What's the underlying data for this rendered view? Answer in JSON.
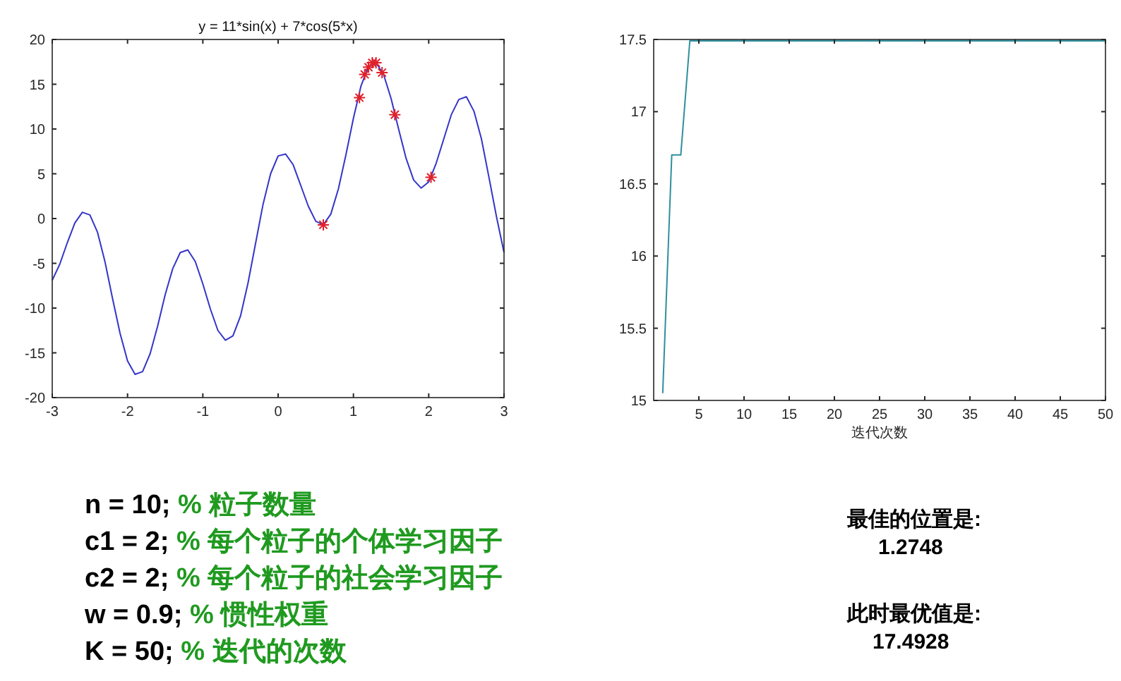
{
  "chart_data": [
    {
      "type": "line",
      "title": "y = 11*sin(x) + 7*cos(5*x)",
      "xlim": [
        -3,
        3
      ],
      "ylim": [
        -20,
        20
      ],
      "xticks": [
        -3,
        -2,
        -1,
        0,
        1,
        2,
        3
      ],
      "yticks": [
        -20,
        -15,
        -10,
        -5,
        0,
        5,
        10,
        15,
        20
      ],
      "series": [
        {
          "type": "line",
          "color": "#3535c8",
          "marker": "none",
          "x": [
            -3,
            -2.9,
            -2.8,
            -2.7,
            -2.6,
            -2.5,
            -2.4,
            -2.3,
            -2.2,
            -2.1,
            -2,
            -1.9,
            -1.8,
            -1.7,
            -1.6,
            -1.5,
            -1.4,
            -1.3,
            -1.2,
            -1.1,
            -1,
            -0.9,
            -0.8,
            -0.7,
            -0.6,
            -0.5,
            -0.4,
            -0.3,
            -0.2,
            -0.1,
            0,
            0.1,
            0.2,
            0.3,
            0.4,
            0.5,
            0.6,
            0.7,
            0.8,
            0.9,
            1,
            1.1,
            1.2,
            1.3,
            1.4,
            1.5,
            1.6,
            1.7,
            1.8,
            1.9,
            2,
            2.1,
            2.2,
            2.3,
            2.4,
            2.5,
            2.6,
            2.7,
            2.8,
            2.9,
            3
          ],
          "values": [
            -6.9,
            -5.1,
            -2.7,
            -0.5,
            0.7,
            0.4,
            -1.5,
            -4.8,
            -8.9,
            -12.8,
            -15.9,
            -17.4,
            -17.1,
            -15.1,
            -12.0,
            -8.5,
            -5.6,
            -3.8,
            -3.5,
            -4.8,
            -7.3,
            -10.1,
            -12.5,
            -13.6,
            -13.1,
            -10.9,
            -7.2,
            -2.8,
            1.6,
            5.0,
            7.0,
            7.2,
            6.0,
            3.7,
            1.4,
            -0.3,
            -0.7,
            0.5,
            3.3,
            7.1,
            11.2,
            14.8,
            17.0,
            17.4,
            16.1,
            13.4,
            10.0,
            6.7,
            4.3,
            3.4,
            4.1,
            6.2,
            8.9,
            11.6,
            13.3,
            13.6,
            12.0,
            8.9,
            4.6,
            0.2,
            -3.8
          ]
        },
        {
          "type": "scatter",
          "color": "#e0202a",
          "marker": "cross",
          "x": [
            0.6,
            1.08,
            1.15,
            1.2,
            1.25,
            1.3,
            1.38,
            1.55,
            2.03
          ],
          "values": [
            -0.7,
            13.5,
            16.1,
            16.9,
            17.4,
            17.4,
            16.3,
            11.6,
            4.6
          ]
        }
      ]
    },
    {
      "type": "line",
      "xlabel": "迭代次数",
      "xlim": [
        0,
        50
      ],
      "ylim": [
        15,
        17.5
      ],
      "xticks": [
        5,
        10,
        15,
        20,
        25,
        30,
        35,
        40,
        45,
        50
      ],
      "yticks": [
        15,
        15.5,
        16,
        16.5,
        17,
        17.5
      ],
      "series": [
        {
          "type": "line",
          "color": "#2f8f9d",
          "marker": "none",
          "x": [
            1,
            2,
            3,
            4,
            5,
            6,
            7,
            8,
            9,
            10,
            11,
            12,
            13,
            14,
            15,
            16,
            17,
            18,
            19,
            20,
            21,
            22,
            23,
            24,
            25,
            26,
            27,
            28,
            29,
            30,
            31,
            32,
            33,
            34,
            35,
            36,
            37,
            38,
            39,
            40,
            41,
            42,
            43,
            44,
            45,
            46,
            47,
            48,
            49,
            50
          ],
          "values": [
            15.05,
            16.7,
            16.7,
            17.49,
            17.49,
            17.49,
            17.49,
            17.49,
            17.49,
            17.49,
            17.49,
            17.49,
            17.49,
            17.49,
            17.49,
            17.49,
            17.49,
            17.49,
            17.49,
            17.49,
            17.49,
            17.49,
            17.49,
            17.49,
            17.49,
            17.49,
            17.49,
            17.49,
            17.49,
            17.49,
            17.49,
            17.49,
            17.49,
            17.49,
            17.49,
            17.49,
            17.49,
            17.49,
            17.49,
            17.49,
            17.49,
            17.49,
            17.49,
            17.49,
            17.49,
            17.49,
            17.49,
            17.49,
            17.49,
            17.49
          ]
        }
      ]
    },
    {
      "type": "other",
      "annotations": [
        "n = 10; % 粒子数量",
        "c1 = 2;  % 每个粒子的个体学习因子",
        "c2 = 2;  % 每个粒子的社会学习因子",
        "w = 0.9;  % 惯性权重",
        "K = 50;  % 迭代的次数",
        "最佳的位置是:",
        "1.2748",
        "此时最优值是:",
        "17.4928"
      ]
    }
  ]
}
